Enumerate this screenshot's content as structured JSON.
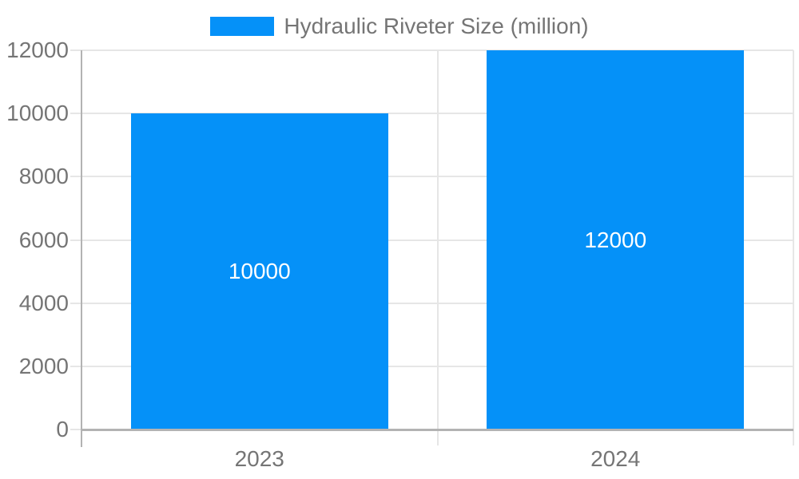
{
  "chart_data": {
    "type": "bar",
    "title": "Hydraulic Riveter Size (million)",
    "categories": [
      "2023",
      "2024"
    ],
    "series": [
      {
        "name": "Hydraulic Riveter Size (million)",
        "values": [
          10000,
          12000
        ]
      }
    ],
    "bar_value_labels": [
      "10000",
      "12000"
    ],
    "xlabel": "",
    "ylabel": "",
    "ylim": [
      0,
      12000
    ],
    "ytick_interval": 2000,
    "yticks": [
      0,
      2000,
      4000,
      6000,
      8000,
      10000,
      12000
    ],
    "grid": true,
    "legend_position": "top-center",
    "colors": {
      "bar": "#0591f8",
      "axis_text": "#757575",
      "gridline": "#e6e6e6",
      "axis_line": "#b3b3b3",
      "bar_label_text": "#ffffff",
      "background": "#ffffff"
    }
  }
}
